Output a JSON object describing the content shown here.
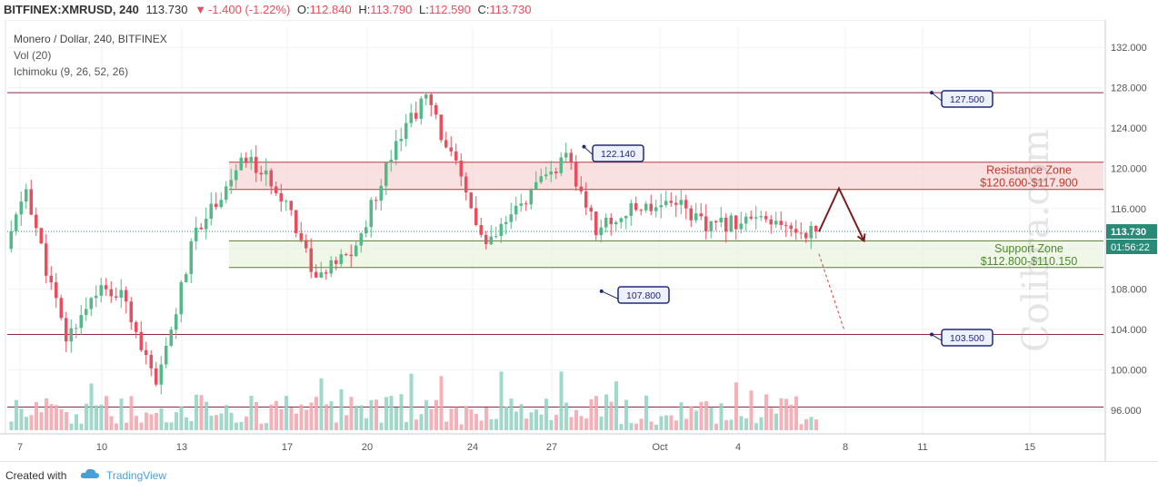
{
  "header": {
    "symbol": "BITFINEX:XMRUSD, 240",
    "last": "113.730",
    "change": "-1.400 (-1.22%)",
    "open_label": "O:",
    "open": "112.840",
    "high_label": "H:",
    "high": "113.790",
    "low_label": "L:",
    "low": "112.590",
    "close_label": "C:",
    "close": "113.730",
    "down_arrow_icon": "triangle-down-icon"
  },
  "legend": {
    "line1": "Monero / Dollar, 240, BITFINEX",
    "line2": "Vol (20)",
    "line3": "Ichimoku (9, 26, 52, 26)"
  },
  "footer": {
    "created_with": "Created with",
    "brand": "TradingView",
    "brand_icon": "cloud-icon"
  },
  "watermark": "Colibra.com",
  "colors": {
    "up": "#53b987",
    "down": "#eb4d5c",
    "vol_up": "#8fd1c1",
    "vol_down": "#f4a3ab",
    "resistance": "#f7d4d4",
    "support": "#e9f3e0",
    "accent": "#1e2a78"
  },
  "chart_data": {
    "type": "candlestick",
    "symbol": "XMRUSD",
    "timeframe": "240",
    "y_axis": {
      "min": 94,
      "max": 134,
      "ticks": [
        "132.000",
        "128.000",
        "124.000",
        "120.000",
        "116.000",
        "112.000",
        "108.000",
        "104.000",
        "100.000",
        "96.000"
      ]
    },
    "x_axis": {
      "ticks": [
        "7",
        "10",
        "13",
        "17",
        "20",
        "24",
        "27",
        "Oct",
        "4",
        "8",
        "11",
        "15"
      ]
    },
    "last_price_label": "113.730",
    "countdown_label": "01:56:22",
    "zones": [
      {
        "name": "Resistance Zone",
        "range_label": "$120.600-$117.900",
        "top": 120.6,
        "bottom": 117.9
      },
      {
        "name": "Support Zone",
        "range_label": "$112.800-$110.150",
        "top": 112.8,
        "bottom": 110.15
      }
    ],
    "levels": [
      {
        "label": "127.500",
        "value": 127.5
      },
      {
        "label": "103.500",
        "value": 103.5
      },
      {
        "label": "96.300",
        "value": 96.3
      }
    ],
    "annotations": [
      {
        "label": "122.140",
        "value": 122.14
      },
      {
        "label": "107.800",
        "value": 107.8
      },
      {
        "label": "127.500",
        "value": 127.5
      },
      {
        "label": "103.500",
        "value": 103.5
      }
    ],
    "anchors": [
      {
        "t": 0,
        "p": 112
      },
      {
        "t": 4,
        "p": 118
      },
      {
        "t": 8,
        "p": 110
      },
      {
        "t": 12,
        "p": 103
      },
      {
        "t": 18,
        "p": 108
      },
      {
        "t": 24,
        "p": 107
      },
      {
        "t": 30,
        "p": 98
      },
      {
        "t": 38,
        "p": 114
      },
      {
        "t": 48,
        "p": 121
      },
      {
        "t": 56,
        "p": 117
      },
      {
        "t": 62,
        "p": 109
      },
      {
        "t": 70,
        "p": 112
      },
      {
        "t": 78,
        "p": 123
      },
      {
        "t": 84,
        "p": 127
      },
      {
        "t": 90,
        "p": 120
      },
      {
        "t": 96,
        "p": 112
      },
      {
        "t": 104,
        "p": 117
      },
      {
        "t": 112,
        "p": 121
      },
      {
        "t": 118,
        "p": 114
      },
      {
        "t": 126,
        "p": 116
      },
      {
        "t": 134,
        "p": 117
      },
      {
        "t": 140,
        "p": 114
      },
      {
        "t": 148,
        "p": 115
      },
      {
        "t": 156,
        "p": 114
      },
      {
        "t": 162,
        "p": 113.7
      }
    ],
    "projection": {
      "main": [
        {
          "t": 162,
          "p": 113.7
        },
        {
          "t": 166,
          "p": 118
        },
        {
          "t": 171,
          "p": 112.8
        }
      ],
      "alternative": [
        {
          "t": 162,
          "p": 111.5
        },
        {
          "t": 167,
          "p": 104
        }
      ]
    }
  }
}
